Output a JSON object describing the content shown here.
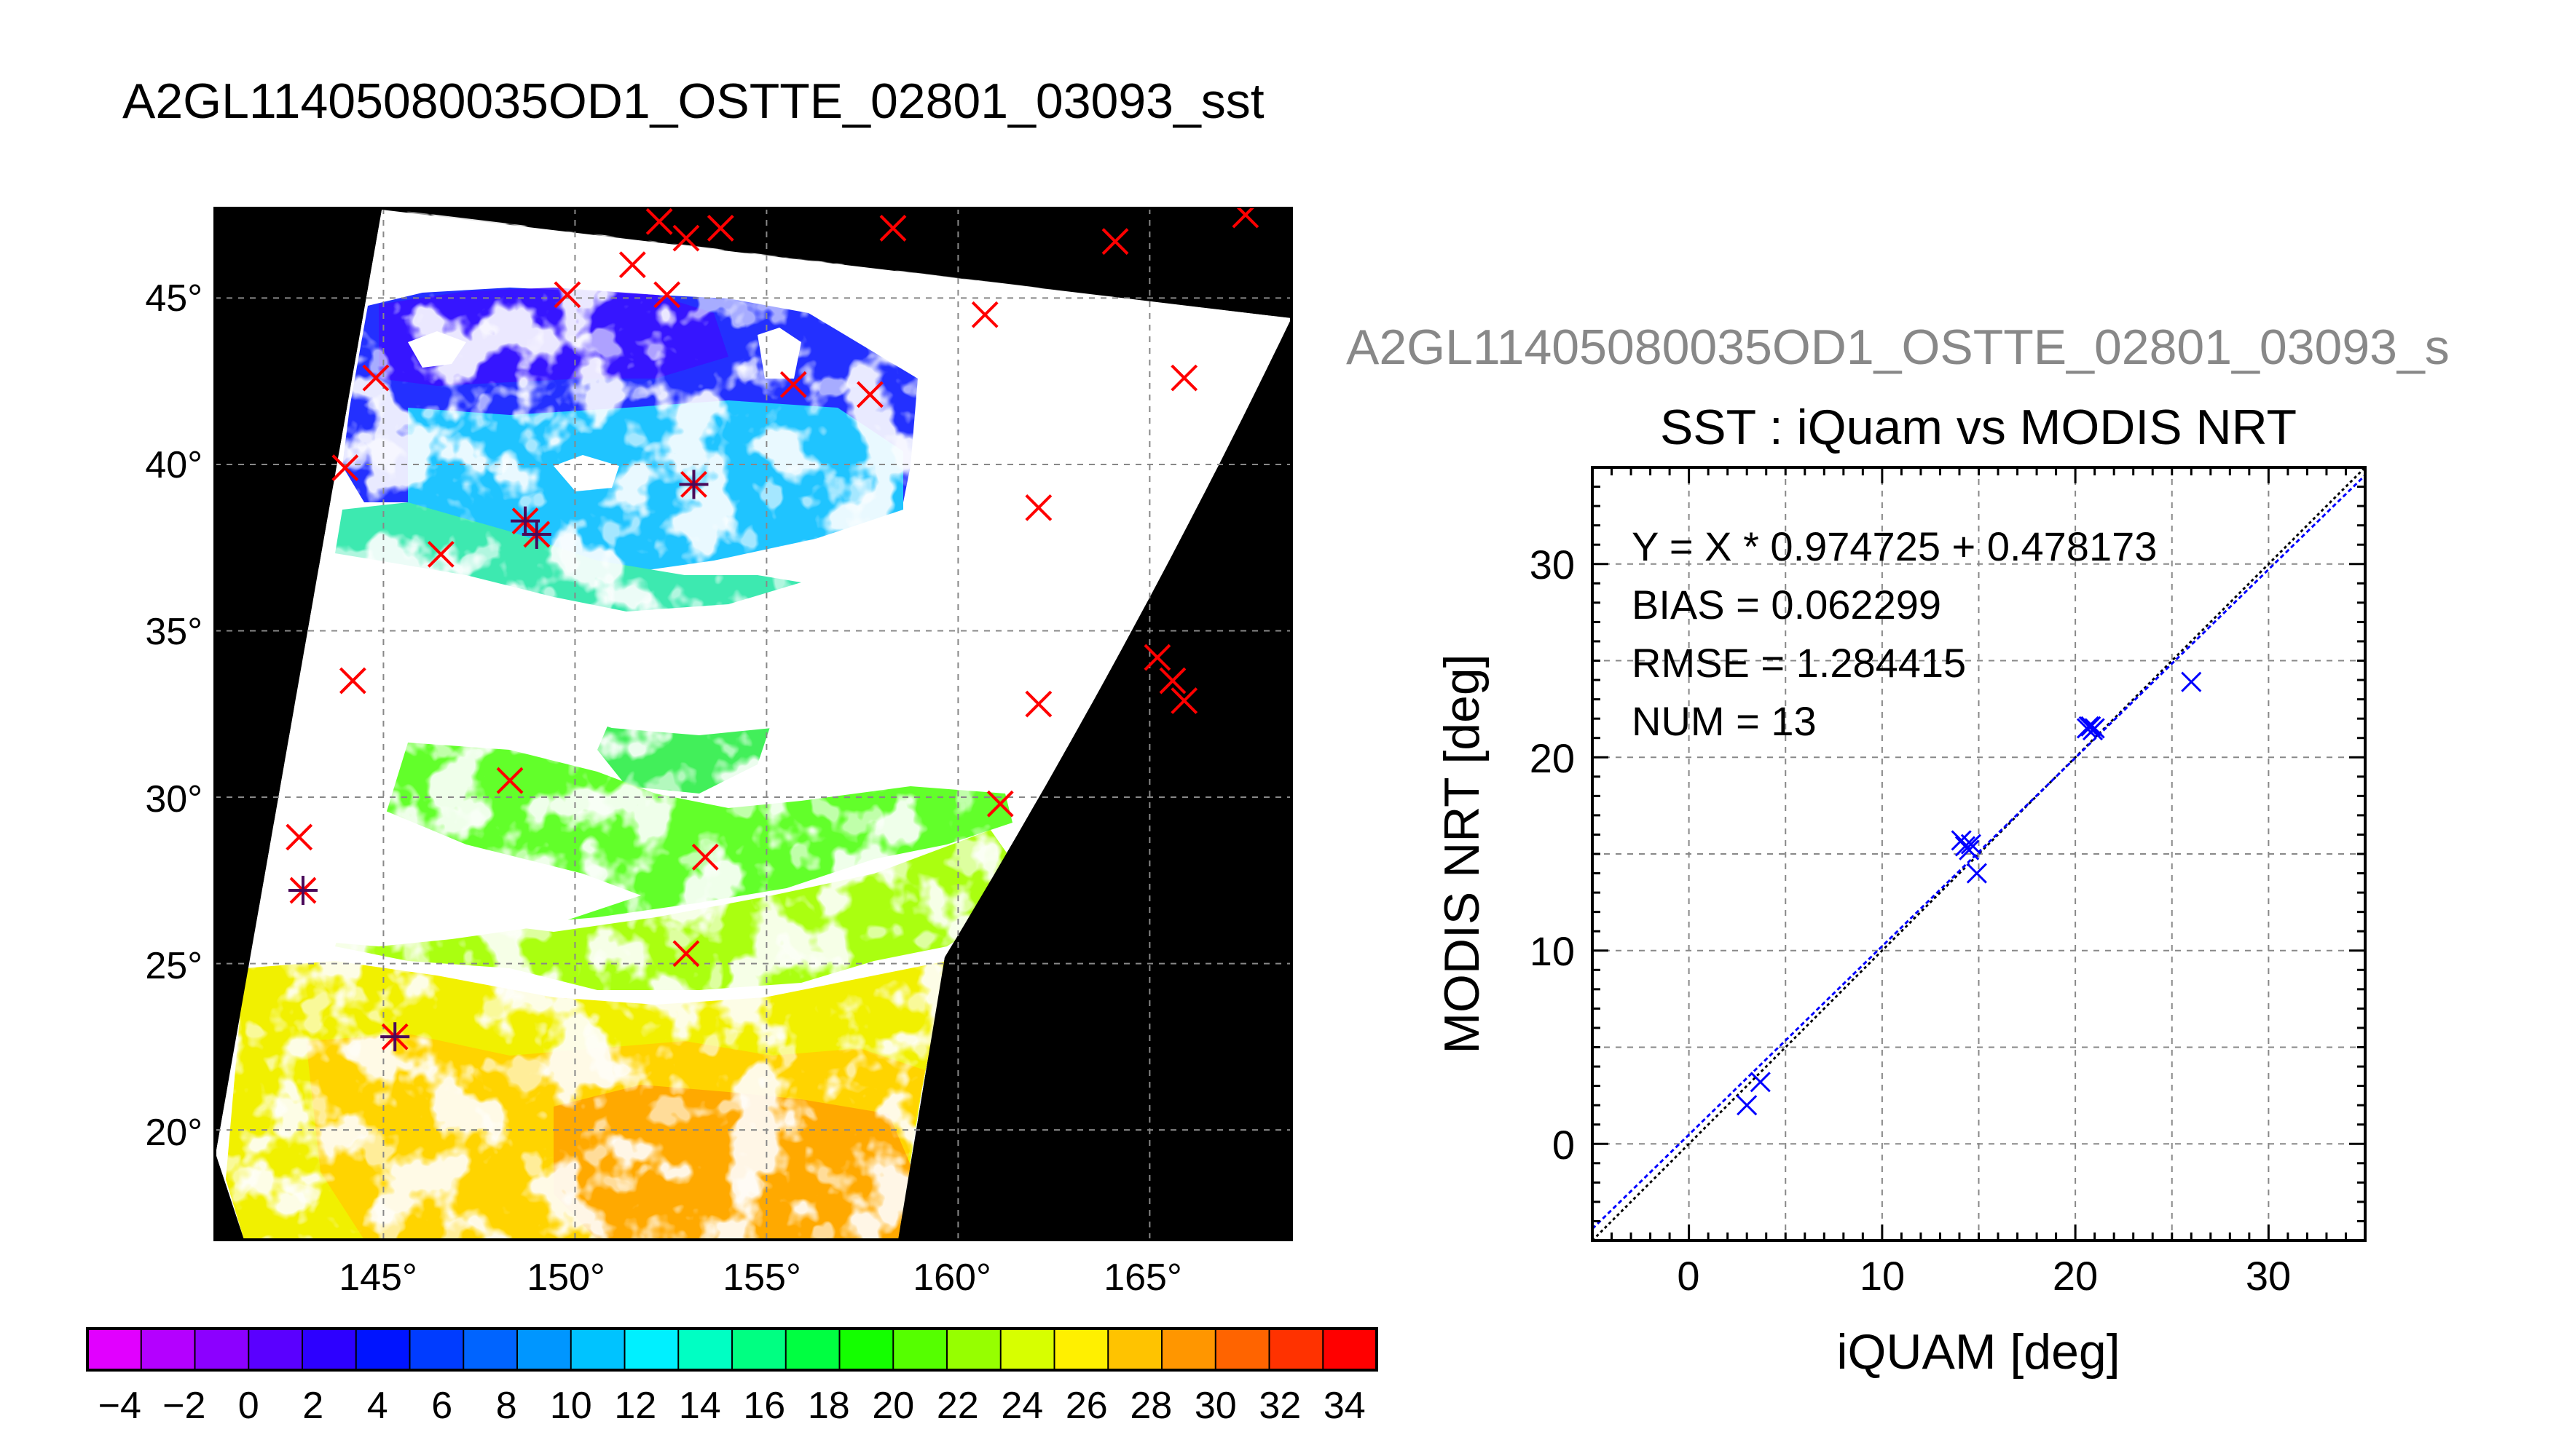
{
  "main_title": "A2GL11405080035OD1_OSTTE_02801_03093_sst",
  "chart_data": [
    {
      "type": "heatmap",
      "title": "A2GL11405080035OD1_OSTTE_02801_03093_sst",
      "x_ticks": [
        "145°",
        "150°",
        "155°",
        "160°",
        "165°"
      ],
      "x_tick_values": [
        145,
        150,
        155,
        160,
        165
      ],
      "y_ticks": [
        "20°",
        "25°",
        "30°",
        "35°",
        "40°",
        "45°"
      ],
      "y_tick_values": [
        20,
        25,
        30,
        35,
        40,
        45
      ],
      "xlim": [
        140.6,
        168.7
      ],
      "ylim": [
        16.7,
        47.7
      ],
      "grid": true,
      "colorbar": {
        "range": [
          -5,
          35
        ],
        "tick_labels": [
          "−4",
          "−2",
          "0",
          "2",
          "4",
          "6",
          "8",
          "10",
          "12",
          "14",
          "16",
          "18",
          "20",
          "22",
          "24",
          "26",
          "28",
          "30",
          "32",
          "34"
        ],
        "colors": [
          "#e100ff",
          "#b400ff",
          "#8c00ff",
          "#5a00ff",
          "#2d00ff",
          "#0014ff",
          "#003cff",
          "#0064ff",
          "#0096ff",
          "#00c3ff",
          "#00f0ff",
          "#00ffc3",
          "#00ff82",
          "#00ff41",
          "#14ff00",
          "#55ff00",
          "#96ff00",
          "#d7ff00",
          "#fff000",
          "#ffc300",
          "#ff9600",
          "#ff6400",
          "#ff3200",
          "#ff0000"
        ]
      },
      "matchup_points": [
        {
          "lon": 152.2,
          "lat": 47.3
        },
        {
          "lon": 152.9,
          "lat": 46.8
        },
        {
          "lon": 153.8,
          "lat": 47.1
        },
        {
          "lon": 158.3,
          "lat": 47.1
        },
        {
          "lon": 164.1,
          "lat": 46.7
        },
        {
          "lon": 167.5,
          "lat": 47.5
        },
        {
          "lon": 151.5,
          "lat": 46.0
        },
        {
          "lon": 149.8,
          "lat": 45.1
        },
        {
          "lon": 152.4,
          "lat": 45.1
        },
        {
          "lon": 160.7,
          "lat": 44.5
        },
        {
          "lon": 165.9,
          "lat": 42.6
        },
        {
          "lon": 155.7,
          "lat": 42.4
        },
        {
          "lon": 157.7,
          "lat": 42.1
        },
        {
          "lon": 144.8,
          "lat": 42.6
        },
        {
          "lon": 144.0,
          "lat": 39.9
        },
        {
          "lon": 153.1,
          "lat": 39.4
        },
        {
          "lon": 148.7,
          "lat": 38.3
        },
        {
          "lon": 149.0,
          "lat": 37.9
        },
        {
          "lon": 162.1,
          "lat": 38.7
        },
        {
          "lon": 146.5,
          "lat": 37.3
        },
        {
          "lon": 144.2,
          "lat": 33.5
        },
        {
          "lon": 165.2,
          "lat": 34.2
        },
        {
          "lon": 165.6,
          "lat": 33.5
        },
        {
          "lon": 165.9,
          "lat": 32.9
        },
        {
          "lon": 162.1,
          "lat": 32.8
        },
        {
          "lon": 148.3,
          "lat": 30.5
        },
        {
          "lon": 161.1,
          "lat": 29.8
        },
        {
          "lon": 142.8,
          "lat": 28.8
        },
        {
          "lon": 153.4,
          "lat": 28.2
        },
        {
          "lon": 142.9,
          "lat": 27.2
        },
        {
          "lon": 152.9,
          "lat": 25.3
        },
        {
          "lon": 145.3,
          "lat": 22.8
        }
      ],
      "validated_points": [
        {
          "lon": 153.1,
          "lat": 39.4
        },
        {
          "lon": 148.7,
          "lat": 38.3
        },
        {
          "lon": 149.0,
          "lat": 37.9
        },
        {
          "lon": 142.9,
          "lat": 27.2
        },
        {
          "lon": 145.3,
          "lat": 22.8
        }
      ]
    },
    {
      "type": "scatter",
      "clipped_title": "A2GL11405080035OD1_OSTTE_02801_03093_s",
      "title": "SST : iQuam vs MODIS NRT",
      "xlabel": "iQUAM [deg]",
      "ylabel": "MODIS NRT [deg]",
      "xlim": [
        -5,
        35
      ],
      "ylim": [
        -5,
        35
      ],
      "x_ticks": [
        "0",
        "10",
        "20",
        "30"
      ],
      "x_tick_values": [
        0,
        10,
        20,
        30
      ],
      "y_ticks": [
        "0",
        "10",
        "20",
        "30"
      ],
      "y_tick_values": [
        0,
        10,
        20,
        30
      ],
      "grid": true,
      "stats": [
        "Y = X * 0.974725 + 0.478173",
        "BIAS = 0.062299",
        "RMSE = 1.284415",
        "NUM = 13"
      ],
      "fit": {
        "slope": 0.974725,
        "intercept": 0.478173
      },
      "points": [
        {
          "x": 3.0,
          "y": 2.0
        },
        {
          "x": 3.7,
          "y": 3.2
        },
        {
          "x": 14.1,
          "y": 15.7
        },
        {
          "x": 14.3,
          "y": 15.4
        },
        {
          "x": 14.6,
          "y": 15.5
        },
        {
          "x": 14.5,
          "y": 15.2
        },
        {
          "x": 14.9,
          "y": 14.0
        },
        {
          "x": 20.6,
          "y": 21.5
        },
        {
          "x": 20.8,
          "y": 21.6
        },
        {
          "x": 20.9,
          "y": 21.4
        },
        {
          "x": 21.0,
          "y": 21.5
        },
        {
          "x": 20.7,
          "y": 21.6
        },
        {
          "x": 26.0,
          "y": 23.9
        }
      ],
      "marker_color": "#0000ff"
    }
  ]
}
